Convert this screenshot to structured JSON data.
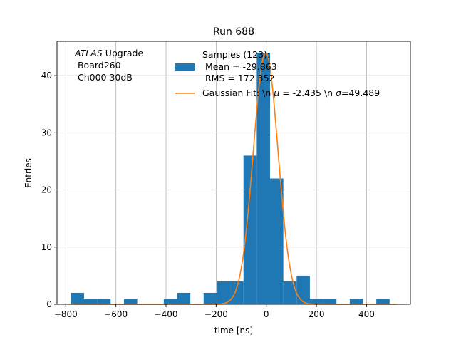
{
  "chart_data": {
    "type": "bar",
    "title": "Run 688",
    "xlabel": "time [ns]",
    "ylabel": "Entries",
    "xlim": [
      -835,
      575
    ],
    "ylim": [
      0,
      46
    ],
    "grid": true,
    "x_ticks": [
      -800,
      -600,
      -400,
      -200,
      0,
      200,
      400
    ],
    "y_ticks": [
      0,
      10,
      20,
      30,
      40
    ],
    "x_tick_labels": [
      "−800",
      "−600",
      "−400",
      "−200",
      "0",
      "200",
      "400"
    ],
    "y_tick_labels": [
      "0",
      "10",
      "20",
      "30",
      "40"
    ],
    "bins": [
      {
        "x0": -780,
        "x1": -727,
        "count": 2
      },
      {
        "x0": -727,
        "x1": -674,
        "count": 1
      },
      {
        "x0": -674,
        "x1": -621,
        "count": 1
      },
      {
        "x0": -568,
        "x1": -515,
        "count": 1
      },
      {
        "x0": -409,
        "x1": -356,
        "count": 1
      },
      {
        "x0": -356,
        "x1": -303,
        "count": 2
      },
      {
        "x0": -250,
        "x1": -197,
        "count": 2
      },
      {
        "x0": -197,
        "x1": -144,
        "count": 4
      },
      {
        "x0": -144,
        "x1": -91,
        "count": 4
      },
      {
        "x0": -91,
        "x1": -38,
        "count": 26
      },
      {
        "x0": -38,
        "x1": 15,
        "count": 44
      },
      {
        "x0": 15,
        "x1": 68,
        "count": 22
      },
      {
        "x0": 68,
        "x1": 121,
        "count": 4
      },
      {
        "x0": 121,
        "x1": 174,
        "count": 5
      },
      {
        "x0": 174,
        "x1": 227,
        "count": 1
      },
      {
        "x0": 227,
        "x1": 280,
        "count": 1
      },
      {
        "x0": 333,
        "x1": 386,
        "count": 1
      },
      {
        "x0": 439,
        "x1": 492,
        "count": 1
      }
    ],
    "fit": {
      "amplitude": 44,
      "mu": -2.435,
      "sigma": 49.489,
      "x_range": [
        -780,
        520
      ]
    },
    "colors": {
      "histogram": "#1f77b4",
      "fit": "#ff7f0e",
      "grid": "#b0b0b0"
    },
    "legend": {
      "placement": "top-right",
      "histogram_lines": [
        "Samples (123):",
        " Mean = -29.863",
        " RMS = 172.352"
      ],
      "fit_label_pre": "Gaussian Fit: \\n ",
      "fit_label_mu": " = -2.435 \\n ",
      "fit_label_sigma": "=49.489",
      "mu_symbol": "μ",
      "sigma_symbol": "σ"
    },
    "annotation": {
      "atlas": "ATLAS",
      "upgrade": " Upgrade",
      "line2": " Board260",
      "line3": " Ch000 30dB"
    }
  }
}
